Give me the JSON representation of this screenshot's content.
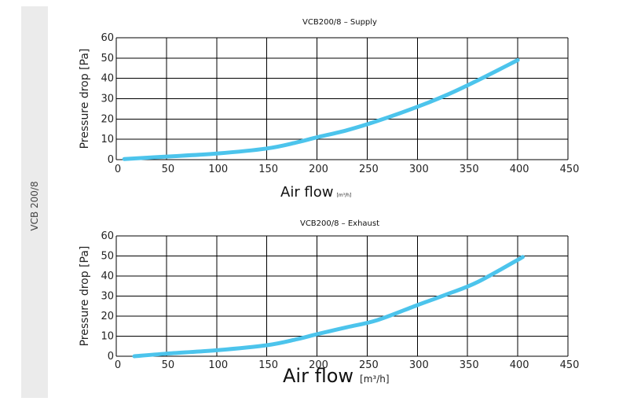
{
  "side_label": "VCB 200/8",
  "chart_data": [
    {
      "type": "line",
      "title": "VCB200/8 – Supply",
      "xlabel": "Air flow",
      "xunit": "[m³/h]",
      "ylabel": "Pressure drop [Pa]",
      "xlim": [
        0,
        450
      ],
      "ylim": [
        0,
        60
      ],
      "xticks": [
        0,
        50,
        100,
        150,
        200,
        250,
        300,
        350,
        400,
        450
      ],
      "yticks": [
        0,
        10,
        20,
        30,
        40,
        50,
        60
      ],
      "grid": true,
      "series": [
        {
          "color": "#4cc4ec",
          "x": [
            8,
            50,
            100,
            150,
            180,
            200,
            230,
            260,
            300,
            330,
            360,
            400
          ],
          "y": [
            0.3,
            1.5,
            3,
            5.5,
            8.5,
            11,
            14.5,
            19,
            26,
            32,
            39,
            49
          ]
        }
      ]
    },
    {
      "type": "line",
      "title": "VCB200/8 – Exhaust",
      "xlabel": "Air flow",
      "xunit": "[m³/h]",
      "ylabel": "Pressure drop [Pa]",
      "xlim": [
        0,
        450
      ],
      "ylim": [
        0,
        60
      ],
      "xticks": [
        0,
        50,
        100,
        150,
        200,
        250,
        300,
        350,
        400,
        450
      ],
      "yticks": [
        0,
        10,
        20,
        30,
        40,
        50,
        60
      ],
      "grid": true,
      "series": [
        {
          "color": "#4cc4ec",
          "x": [
            18,
            50,
            100,
            150,
            180,
            200,
            230,
            260,
            300,
            330,
            360,
            405
          ],
          "y": [
            0,
            1.3,
            3,
            5.5,
            8.5,
            11,
            14.5,
            18,
            25.5,
            31,
            37,
            49.5
          ]
        }
      ]
    }
  ]
}
